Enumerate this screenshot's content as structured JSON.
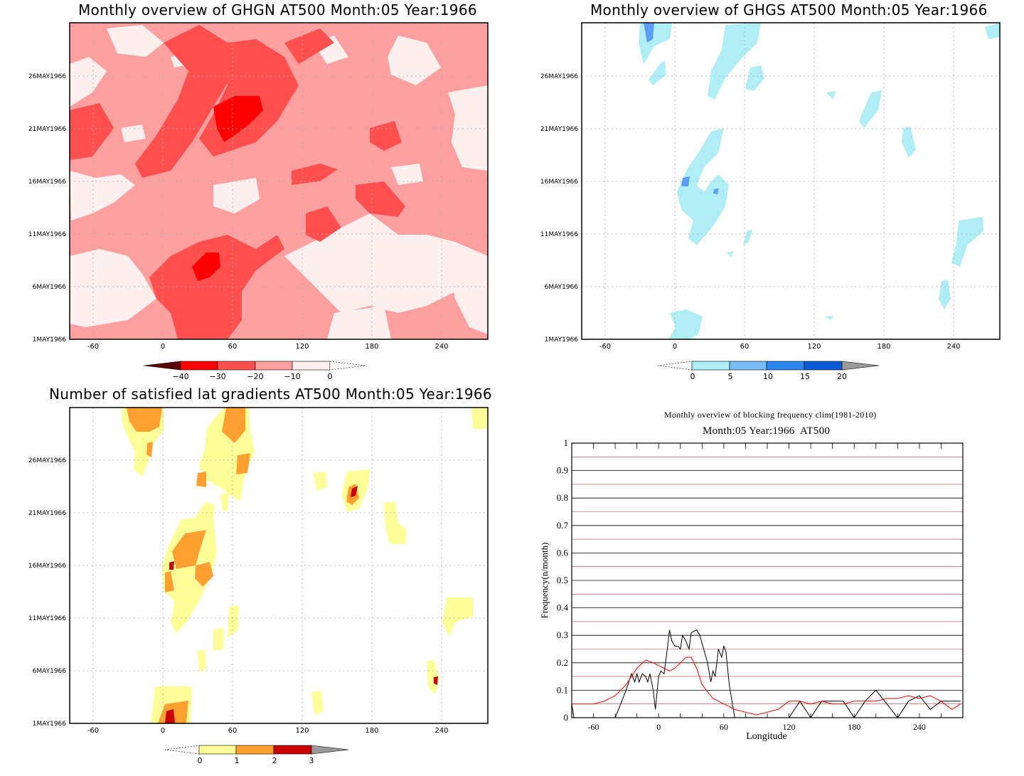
{
  "panels": {
    "ghgn": {
      "title": "Monthly overview of GHGN AT500 Month:05 Year:1966",
      "colorbar_ticks": [
        "−40",
        "−30",
        "−20",
        "−10",
        "0"
      ],
      "colorbar_colors": [
        "#5a0000",
        "#ff0000",
        "#ff5050",
        "#ffa0a0",
        "#fff0f0"
      ],
      "fill_levels": [
        "#fff0f0",
        "#ffa0a0",
        "#ff5050",
        "#ff0000"
      ]
    },
    "ghgs": {
      "title": "Monthly overview of GHGS AT500 Month:05 Year:1966",
      "colorbar_ticks": [
        "0",
        "5",
        "10",
        "15",
        "20"
      ],
      "colorbar_colors": [
        "#afeef5",
        "#78bdf5",
        "#2a88f0",
        "#0a5ad8",
        "#999999"
      ],
      "fill_levels": [
        "#afeef5",
        "#5a9ef5"
      ]
    },
    "satisfied": {
      "title": "Number of satisfied lat gradients AT500 Month:05 Year:1966",
      "colorbar_ticks": [
        "0",
        "1",
        "2",
        "3"
      ],
      "colorbar_colors": [
        "#ffff99",
        "#ffa030",
        "#c80000",
        "#999999"
      ],
      "fill_levels": [
        "#ffff99",
        "#ffa030",
        "#c80000"
      ]
    },
    "frequency": {
      "title": "Monthly overview of blocking frequency clim(1981-2010)",
      "subtitle": "Month:05 Year:1966  AT500",
      "xlabel": "Longitude",
      "ylabel": "Frequency(n/month)"
    }
  },
  "time_axis_labels": [
    "1MAY1966",
    "6MAY1966",
    "11MAY1966",
    "16MAY1966",
    "21MAY1966",
    "26MAY1966"
  ],
  "lon_axis_labels": [
    "-60",
    "0",
    "60",
    "120",
    "180",
    "240"
  ],
  "chart_data": [
    {
      "type": "heatmap",
      "title": "Monthly overview of GHGN AT500 Month:05 Year:1966",
      "x": "longitude",
      "y": "date",
      "xlim": [
        -80,
        280
      ],
      "ylim": [
        "1MAY1966",
        "31MAY1966"
      ],
      "levels": [
        -40,
        -30,
        -20,
        -10,
        0
      ],
      "grid": true
    },
    {
      "type": "heatmap",
      "title": "Monthly overview of GHGS AT500 Month:05 Year:1966",
      "x": "longitude",
      "y": "date",
      "xlim": [
        -80,
        280
      ],
      "ylim": [
        "1MAY1966",
        "31MAY1966"
      ],
      "levels": [
        0,
        5,
        10,
        15,
        20
      ],
      "grid": true
    },
    {
      "type": "heatmap",
      "title": "Number of satisfied lat gradients AT500 Month:05 Year:1966",
      "x": "longitude",
      "y": "date",
      "xlim": [
        -80,
        280
      ],
      "ylim": [
        "1MAY1966",
        "31MAY1966"
      ],
      "levels": [
        0,
        1,
        2,
        3
      ],
      "grid": true
    },
    {
      "type": "line",
      "title": "Monthly overview of blocking frequency clim(1981-2010)",
      "subtitle": "Month:05 Year:1966  AT500",
      "xlabel": "Longitude",
      "ylabel": "Frequency(n/month)",
      "xlim": [
        -80,
        280
      ],
      "ylim": [
        0,
        1
      ],
      "x_ticks": [
        -60,
        0,
        60,
        120,
        180,
        240
      ],
      "y_ticks": [
        0,
        0.1,
        0.2,
        0.3,
        0.4,
        0.5,
        0.6,
        0.7,
        0.8,
        0.9,
        1
      ],
      "series": [
        {
          "color": "#000000",
          "x": [
            -80,
            -78,
            -60,
            -40,
            -30,
            -25,
            -22,
            -20,
            -18,
            -15,
            -12,
            -10,
            -8,
            -5,
            -3,
            0,
            2,
            5,
            8,
            10,
            12,
            15,
            18,
            20,
            22,
            25,
            28,
            30,
            35,
            38,
            40,
            45,
            48,
            50,
            52,
            55,
            58,
            60,
            62,
            65,
            70,
            80,
            100,
            120,
            130,
            140,
            150,
            160,
            170,
            180,
            190,
            200,
            210,
            220,
            230,
            240,
            250,
            260,
            270,
            278
          ],
          "y": [
            0.05,
            0,
            0,
            0,
            0.1,
            0.16,
            0.13,
            0.16,
            0.13,
            0.16,
            0.15,
            0.13,
            0.16,
            0.1,
            0.03,
            0.15,
            0.17,
            0.16,
            0.25,
            0.32,
            0.28,
            0.26,
            0.26,
            0.25,
            0.3,
            0.28,
            0.25,
            0.31,
            0.32,
            0.3,
            0.27,
            0.2,
            0.13,
            0.17,
            0.15,
            0.25,
            0.22,
            0.26,
            0.24,
            0.12,
            0,
            0,
            0,
            0,
            0.06,
            0,
            0.06,
            0.06,
            0.06,
            0,
            0.06,
            0.1,
            0.05,
            0,
            0.06,
            0.08,
            0.03,
            0.06,
            0.06,
            0.06
          ]
        },
        {
          "color": "#ff0000",
          "x": [
            -80,
            -70,
            -60,
            -50,
            -40,
            -30,
            -20,
            -12,
            -5,
            0,
            5,
            10,
            15,
            20,
            25,
            30,
            35,
            40,
            50,
            60,
            70,
            80,
            90,
            100,
            110,
            120,
            130,
            140,
            150,
            160,
            170,
            180,
            190,
            200,
            210,
            220,
            230,
            240,
            250,
            260,
            270,
            278
          ],
          "y": [
            0.05,
            0.05,
            0.05,
            0.06,
            0.08,
            0.12,
            0.18,
            0.21,
            0.2,
            0.19,
            0.18,
            0.17,
            0.18,
            0.2,
            0.22,
            0.22,
            0.18,
            0.12,
            0.07,
            0.05,
            0.03,
            0.02,
            0.01,
            0.02,
            0.03,
            0.06,
            0.06,
            0.05,
            0.06,
            0.05,
            0.05,
            0.06,
            0.06,
            0.06,
            0.07,
            0.07,
            0.08,
            0.07,
            0.08,
            0.06,
            0.03,
            0.05
          ]
        }
      ],
      "grid": true
    }
  ]
}
